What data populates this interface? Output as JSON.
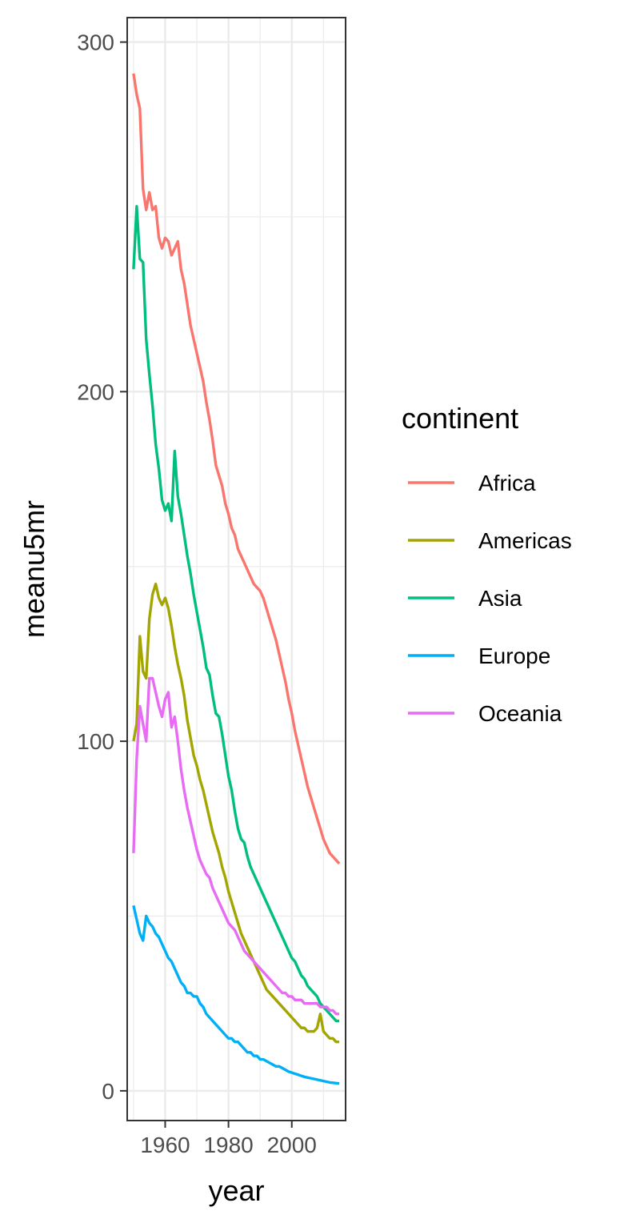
{
  "chart_data": {
    "type": "line",
    "xlabel": "year",
    "ylabel": "meanu5mr",
    "xlim": [
      1948,
      2017
    ],
    "ylim": [
      -8.5,
      307
    ],
    "xticks": [
      1960,
      1980,
      2000
    ],
    "yticks": [
      0,
      100,
      200,
      300
    ],
    "grid": true,
    "legend": {
      "title": "continent",
      "position": "right"
    },
    "series": [
      {
        "name": "Africa",
        "color": "#F8766D",
        "x": [
          1950,
          1951,
          1952,
          1953,
          1954,
          1955,
          1956,
          1957,
          1958,
          1959,
          1960,
          1961,
          1962,
          1963,
          1964,
          1965,
          1966,
          1967,
          1968,
          1969,
          1970,
          1971,
          1972,
          1973,
          1974,
          1975,
          1976,
          1977,
          1978,
          1979,
          1980,
          1981,
          1982,
          1983,
          1984,
          1985,
          1986,
          1987,
          1988,
          1989,
          1990,
          1991,
          1992,
          1993,
          1994,
          1995,
          1996,
          1997,
          1998,
          1999,
          2000,
          2001,
          2002,
          2003,
          2004,
          2005,
          2006,
          2007,
          2008,
          2009,
          2010,
          2011,
          2012,
          2013,
          2014,
          2015
        ],
        "y": [
          291,
          285,
          281,
          258,
          252,
          257,
          252,
          253,
          244,
          241,
          244,
          243,
          239,
          241,
          243,
          235,
          231,
          225,
          219,
          215,
          211,
          207,
          203,
          197,
          192,
          186,
          179,
          176,
          173,
          168,
          165,
          161,
          159,
          155,
          153,
          151,
          149,
          147,
          145,
          144,
          143,
          141,
          138,
          135,
          132,
          129,
          125,
          121,
          117,
          112,
          108,
          103,
          99,
          95,
          91,
          87,
          84,
          81,
          78,
          75,
          72,
          70,
          68,
          67,
          66,
          65
        ]
      },
      {
        "name": "Americas",
        "color": "#A3A500",
        "x": [
          1950,
          1951,
          1952,
          1953,
          1954,
          1955,
          1956,
          1957,
          1958,
          1959,
          1960,
          1961,
          1962,
          1963,
          1964,
          1965,
          1966,
          1967,
          1968,
          1969,
          1970,
          1971,
          1972,
          1973,
          1974,
          1975,
          1976,
          1977,
          1978,
          1979,
          1980,
          1981,
          1982,
          1983,
          1984,
          1985,
          1986,
          1987,
          1988,
          1989,
          1990,
          1991,
          1992,
          1993,
          1994,
          1995,
          1996,
          1997,
          1998,
          1999,
          2000,
          2001,
          2002,
          2003,
          2004,
          2005,
          2006,
          2007,
          2008,
          2009,
          2010,
          2011,
          2012,
          2013,
          2014,
          2015
        ],
        "y": [
          100,
          105,
          130,
          120,
          118,
          135,
          142,
          145,
          141,
          139,
          141,
          138,
          133,
          127,
          122,
          118,
          113,
          106,
          101,
          96,
          93,
          89,
          86,
          82,
          78,
          74,
          71,
          68,
          64,
          61,
          57,
          54,
          51,
          48,
          45,
          43,
          41,
          39,
          37,
          35,
          33,
          31,
          29,
          28,
          27,
          26,
          25,
          24,
          23,
          22,
          21,
          20,
          19,
          18,
          18,
          17,
          17,
          17,
          18,
          22,
          17,
          16,
          15,
          15,
          14,
          14
        ]
      },
      {
        "name": "Asia",
        "color": "#00BF7D",
        "x": [
          1950,
          1951,
          1952,
          1953,
          1954,
          1955,
          1956,
          1957,
          1958,
          1959,
          1960,
          1961,
          1962,
          1963,
          1964,
          1965,
          1966,
          1967,
          1968,
          1969,
          1970,
          1971,
          1972,
          1973,
          1974,
          1975,
          1976,
          1977,
          1978,
          1979,
          1980,
          1981,
          1982,
          1983,
          1984,
          1985,
          1986,
          1987,
          1988,
          1989,
          1990,
          1991,
          1992,
          1993,
          1994,
          1995,
          1996,
          1997,
          1998,
          1999,
          2000,
          2001,
          2002,
          2003,
          2004,
          2005,
          2006,
          2007,
          2008,
          2009,
          2010,
          2011,
          2012,
          2013,
          2014,
          2015
        ],
        "y": [
          235,
          253,
          238,
          237,
          215,
          205,
          196,
          185,
          178,
          169,
          166,
          168,
          163,
          183,
          170,
          165,
          159,
          153,
          148,
          142,
          137,
          132,
          127,
          121,
          119,
          113,
          108,
          107,
          102,
          96,
          90,
          86,
          80,
          75,
          72,
          71,
          67,
          64,
          62,
          60,
          58,
          56,
          54,
          52,
          50,
          48,
          46,
          44,
          42,
          40,
          38,
          37,
          35,
          33,
          32,
          30,
          29,
          28,
          27,
          25,
          24,
          23,
          22,
          21,
          20,
          20
        ]
      },
      {
        "name": "Europe",
        "color": "#00B0F6",
        "x": [
          1950,
          1951,
          1952,
          1953,
          1954,
          1955,
          1956,
          1957,
          1958,
          1959,
          1960,
          1961,
          1962,
          1963,
          1964,
          1965,
          1966,
          1967,
          1968,
          1969,
          1970,
          1971,
          1972,
          1973,
          1974,
          1975,
          1976,
          1977,
          1978,
          1979,
          1980,
          1981,
          1982,
          1983,
          1984,
          1985,
          1986,
          1987,
          1988,
          1989,
          1990,
          1991,
          1992,
          1993,
          1994,
          1995,
          1996,
          1997,
          1998,
          1999,
          2000,
          2001,
          2002,
          2003,
          2004,
          2005,
          2006,
          2007,
          2008,
          2009,
          2010,
          2011,
          2012,
          2013,
          2014,
          2015
        ],
        "y": [
          53,
          49,
          45,
          43,
          50,
          48,
          47,
          45,
          44,
          42,
          40,
          38,
          37,
          35,
          33,
          31,
          30,
          28,
          28,
          27,
          27,
          25,
          24,
          22,
          21,
          20,
          19,
          18,
          17,
          16,
          15,
          15,
          14,
          14,
          13,
          12,
          11,
          11,
          10,
          10,
          9,
          9,
          8.5,
          8,
          7.5,
          7,
          7,
          6.5,
          6,
          5.5,
          5.2,
          4.9,
          4.6,
          4.3,
          4,
          3.8,
          3.6,
          3.4,
          3.2,
          3.0,
          2.8,
          2.6,
          2.4,
          2.3,
          2.2,
          2.1
        ]
      },
      {
        "name": "Oceania",
        "color": "#E76BF3",
        "x": [
          1950,
          1951,
          1952,
          1953,
          1954,
          1955,
          1956,
          1957,
          1958,
          1959,
          1960,
          1961,
          1962,
          1963,
          1964,
          1965,
          1966,
          1967,
          1968,
          1969,
          1970,
          1971,
          1972,
          1973,
          1974,
          1975,
          1976,
          1977,
          1978,
          1979,
          1980,
          1981,
          1982,
          1983,
          1984,
          1985,
          1986,
          1987,
          1988,
          1989,
          1990,
          1991,
          1992,
          1993,
          1994,
          1995,
          1996,
          1997,
          1998,
          1999,
          2000,
          2001,
          2002,
          2003,
          2004,
          2005,
          2006,
          2007,
          2008,
          2009,
          2010,
          2011,
          2012,
          2013,
          2014,
          2015
        ],
        "y": [
          68,
          95,
          110,
          105,
          100,
          118,
          118,
          114,
          110,
          107,
          112,
          114,
          104,
          107,
          100,
          92,
          86,
          81,
          77,
          73,
          69,
          66,
          64,
          62,
          61,
          58,
          56,
          54,
          52,
          50,
          48,
          47,
          46,
          44,
          42,
          40,
          39,
          38,
          37,
          36,
          35,
          34,
          33,
          32,
          31,
          30,
          29,
          28,
          28,
          27,
          27,
          26,
          26,
          26,
          25,
          25,
          25,
          25,
          25,
          24,
          24,
          24,
          23,
          23,
          22,
          22
        ]
      }
    ]
  }
}
